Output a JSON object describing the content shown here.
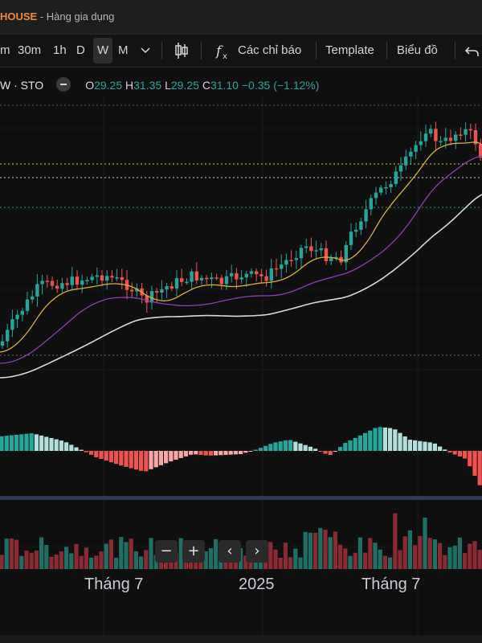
{
  "title": {
    "name": "HOUSE",
    "subtitle": " - Hàng gia dụng"
  },
  "toolbar": {
    "timeframes": [
      "m",
      "30m",
      "1h",
      "D",
      "W",
      "M"
    ],
    "active_timeframe": "W",
    "chevron_icon": "chevron-down-icon",
    "candle_icon": "candlestick-icon",
    "indicator_icon": "function-icon",
    "indicators_label": "Các chỉ báo",
    "template_label": "Template",
    "chart_label": "Biểu đồ",
    "undo_icon": "undo-icon"
  },
  "legend": {
    "symbol": "W · STO",
    "o_label": "O",
    "o": "29.25",
    "h_label": "H",
    "h": "31.35",
    "l_label": "L",
    "l": "29.25",
    "c_label": "C",
    "c": "31.10",
    "change": "−0.35 (−1.12%)"
  },
  "nav": {
    "zoom_out": "−",
    "zoom_in": "+",
    "prev": "‹",
    "next": "›"
  },
  "xaxis": {
    "labels": [
      "Tháng 7",
      "2025",
      "Tháng 7"
    ]
  },
  "colors": {
    "up": "#26a69a",
    "down": "#ef5350",
    "ma_short": "#d4b33c",
    "ma_mid": "#8e3fb4",
    "ma_long": "#d8d8d8",
    "hist_up": "#26a69a",
    "hist_down": "#ef5350"
  }
}
